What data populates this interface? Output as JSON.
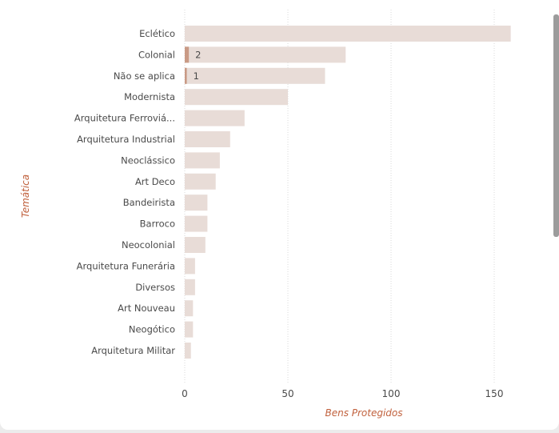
{
  "chart_data": {
    "type": "bar",
    "orientation": "horizontal",
    "xlabel": "Bens Protegidos",
    "ylabel": "Temática",
    "xlim": [
      0,
      160
    ],
    "xticks": [
      0,
      50,
      100,
      150
    ],
    "grid": true,
    "categories": [
      "Eclético",
      "Colonial",
      "Não se aplica",
      "Modernista",
      "Arquitetura Ferroviá...",
      "Arquitetura Industrial",
      "Neoclássico",
      "Art Deco",
      "Bandeirista",
      "Barroco",
      "Neocolonial",
      "Arquitetura Funerária",
      "Diversos",
      "Art Nouveau",
      "Neogótico",
      "Arquitetura Militar"
    ],
    "series": [
      {
        "values": [
          158,
          78,
          68,
          50,
          29,
          22,
          17,
          15,
          11,
          11,
          10,
          5,
          5,
          4,
          4,
          3
        ],
        "color": "#e8dcd7"
      },
      {
        "values": [
          0,
          2,
          1,
          0,
          0,
          0,
          0,
          0,
          0,
          0,
          0,
          0,
          0,
          0,
          0,
          0
        ],
        "color": "#c99a85",
        "data_labels": [
          "",
          "2",
          "1",
          "",
          "",
          "",
          "",
          "",
          "",
          "",
          "",
          "",
          "",
          "",
          "",
          ""
        ]
      }
    ]
  }
}
